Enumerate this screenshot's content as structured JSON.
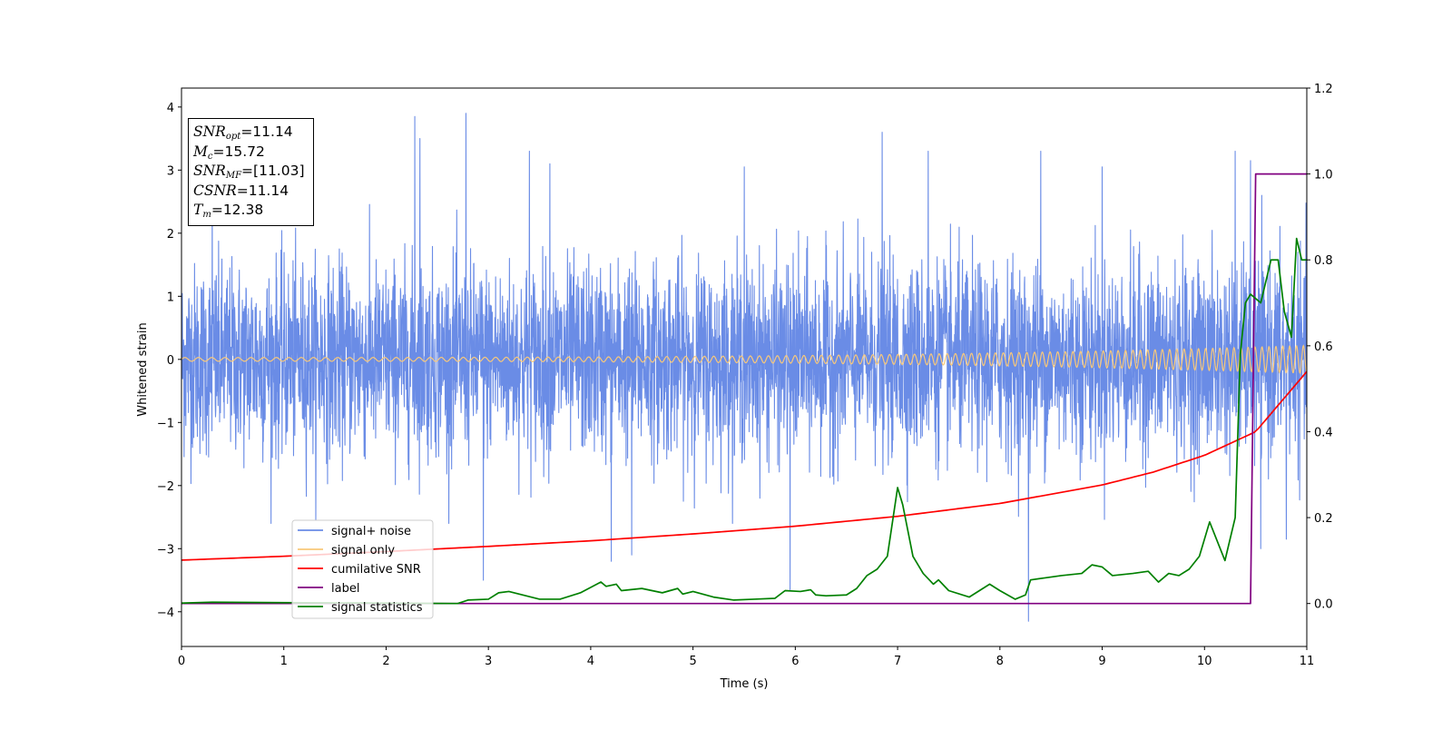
{
  "chart_data": {
    "type": "line",
    "title": "",
    "xlabel": "Time (s)",
    "ylabel": "Whitened strain",
    "ylabel_right": "",
    "xlim": [
      0,
      11
    ],
    "ylim": [
      -4.55,
      4.3
    ],
    "ylim_right": [
      -0.1,
      1.2
    ],
    "x_ticks": [
      0,
      1,
      2,
      3,
      4,
      5,
      6,
      7,
      8,
      9,
      10,
      11
    ],
    "y_ticks": [
      -4,
      -3,
      -2,
      -1,
      0,
      1,
      2,
      3,
      4
    ],
    "y_ticks_right": [
      0.0,
      0.2,
      0.4,
      0.6,
      0.8,
      1.0,
      1.2
    ],
    "x_tick_labels": [
      "0",
      "1",
      "2",
      "3",
      "4",
      "5",
      "6",
      "7",
      "8",
      "9",
      "10",
      "11"
    ],
    "y_tick_labels": [
      "−4",
      "−3",
      "−2",
      "−1",
      "0",
      "1",
      "2",
      "3",
      "4"
    ],
    "y_tick_labels_right": [
      "0.0",
      "0.2",
      "0.4",
      "0.6",
      "0.8",
      "1.0",
      "1.2"
    ],
    "grid": false,
    "legend_position": "lower-left",
    "annotations": {
      "snr_opt_sym": "SNR",
      "snr_opt_sub": "opt",
      "snr_opt_val": "=11.14",
      "mc_sym": "M",
      "mc_sub": "c",
      "mc_val": "=15.72",
      "snr_mf_sym": "SNR",
      "snr_mf_sub": "MF",
      "snr_mf_val": "=[11.03]",
      "csnr_sym": "CSNR",
      "csnr_val": "=11.14",
      "tm_sym": "T",
      "tm_sub": "m",
      "tm_val": "=12.38"
    },
    "series": [
      {
        "name": "signal+ noise",
        "color": "#6a8ce6",
        "axis": "left",
        "noise_std": 0.75,
        "noise_samples": 4400,
        "spikes": [
          [
            0.3,
            2.7
          ],
          [
            2.28,
            3.85
          ],
          [
            2.33,
            3.5
          ],
          [
            2.78,
            3.9
          ],
          [
            3.4,
            3.3
          ],
          [
            3.6,
            3.1
          ],
          [
            4.4,
            3.1
          ],
          [
            5.5,
            3.05
          ],
          [
            5.95,
            3.0
          ],
          [
            6.85,
            3.6
          ],
          [
            7.3,
            3.3
          ],
          [
            8.4,
            3.3
          ],
          [
            9.0,
            3.05
          ],
          [
            10.3,
            3.3
          ],
          [
            10.45,
            3.15
          ],
          [
            2.95,
            -3.5
          ],
          [
            4.2,
            -3.2
          ],
          [
            4.4,
            -3.1
          ],
          [
            5.95,
            -3.65
          ],
          [
            8.28,
            -4.15
          ],
          [
            10.55,
            -3.0
          ],
          [
            10.8,
            -2.85
          ]
        ]
      },
      {
        "name": "signal only",
        "color": "#f8c87a",
        "axis": "left",
        "amplitude_start": 0.03,
        "amplitude_end": 0.22,
        "freq_start_hz": 7.5,
        "freq_end_hz": 15
      },
      {
        "name": "cumilative SNR",
        "color": "#ff0000",
        "axis": "right",
        "x": [
          0,
          1,
          2,
          3,
          4,
          5,
          6,
          7,
          8,
          9,
          9.5,
          10,
          10.5,
          11
        ],
        "y": [
          0.101,
          0.11,
          0.121,
          0.133,
          0.146,
          0.162,
          0.18,
          0.203,
          0.233,
          0.276,
          0.306,
          0.345,
          0.4,
          0.54
        ]
      },
      {
        "name": "label",
        "color": "#800080",
        "axis": "right",
        "x": [
          0,
          10.45,
          10.5,
          11
        ],
        "y": [
          0.0,
          0.0,
          1.0,
          1.0
        ]
      },
      {
        "name": "signal statistics",
        "color": "#008000",
        "axis": "right",
        "x": [
          0,
          0.3,
          1.0,
          2.0,
          2.7,
          2.8,
          3.0,
          3.1,
          3.2,
          3.5,
          3.7,
          3.9,
          4.1,
          4.15,
          4.25,
          4.3,
          4.5,
          4.7,
          4.85,
          4.9,
          5.0,
          5.2,
          5.4,
          5.6,
          5.8,
          5.9,
          6.05,
          6.15,
          6.2,
          6.3,
          6.5,
          6.6,
          6.7,
          6.8,
          6.9,
          7.0,
          7.05,
          7.15,
          7.25,
          7.35,
          7.4,
          7.5,
          7.7,
          7.9,
          8.0,
          8.15,
          8.25,
          8.3,
          8.45,
          8.6,
          8.8,
          8.9,
          9.0,
          9.1,
          9.3,
          9.45,
          9.55,
          9.65,
          9.75,
          9.85,
          9.95,
          10.05,
          10.2,
          10.3,
          10.35,
          10.4,
          10.45,
          10.55,
          10.65,
          10.72,
          10.78,
          10.85,
          10.9,
          10.95,
          11.0
        ],
        "y": [
          0.001,
          0.003,
          0.002,
          0.001,
          0.0,
          0.008,
          0.01,
          0.025,
          0.028,
          0.01,
          0.01,
          0.025,
          0.05,
          0.04,
          0.045,
          0.03,
          0.035,
          0.025,
          0.035,
          0.022,
          0.028,
          0.015,
          0.008,
          0.01,
          0.012,
          0.03,
          0.028,
          0.032,
          0.02,
          0.018,
          0.02,
          0.035,
          0.065,
          0.08,
          0.11,
          0.27,
          0.23,
          0.11,
          0.07,
          0.045,
          0.055,
          0.03,
          0.015,
          0.045,
          0.03,
          0.01,
          0.02,
          0.055,
          0.06,
          0.065,
          0.07,
          0.09,
          0.085,
          0.065,
          0.07,
          0.075,
          0.05,
          0.07,
          0.065,
          0.08,
          0.11,
          0.19,
          0.1,
          0.2,
          0.58,
          0.7,
          0.72,
          0.7,
          0.8,
          0.8,
          0.68,
          0.62,
          0.85,
          0.8,
          0.8
        ]
      }
    ]
  }
}
